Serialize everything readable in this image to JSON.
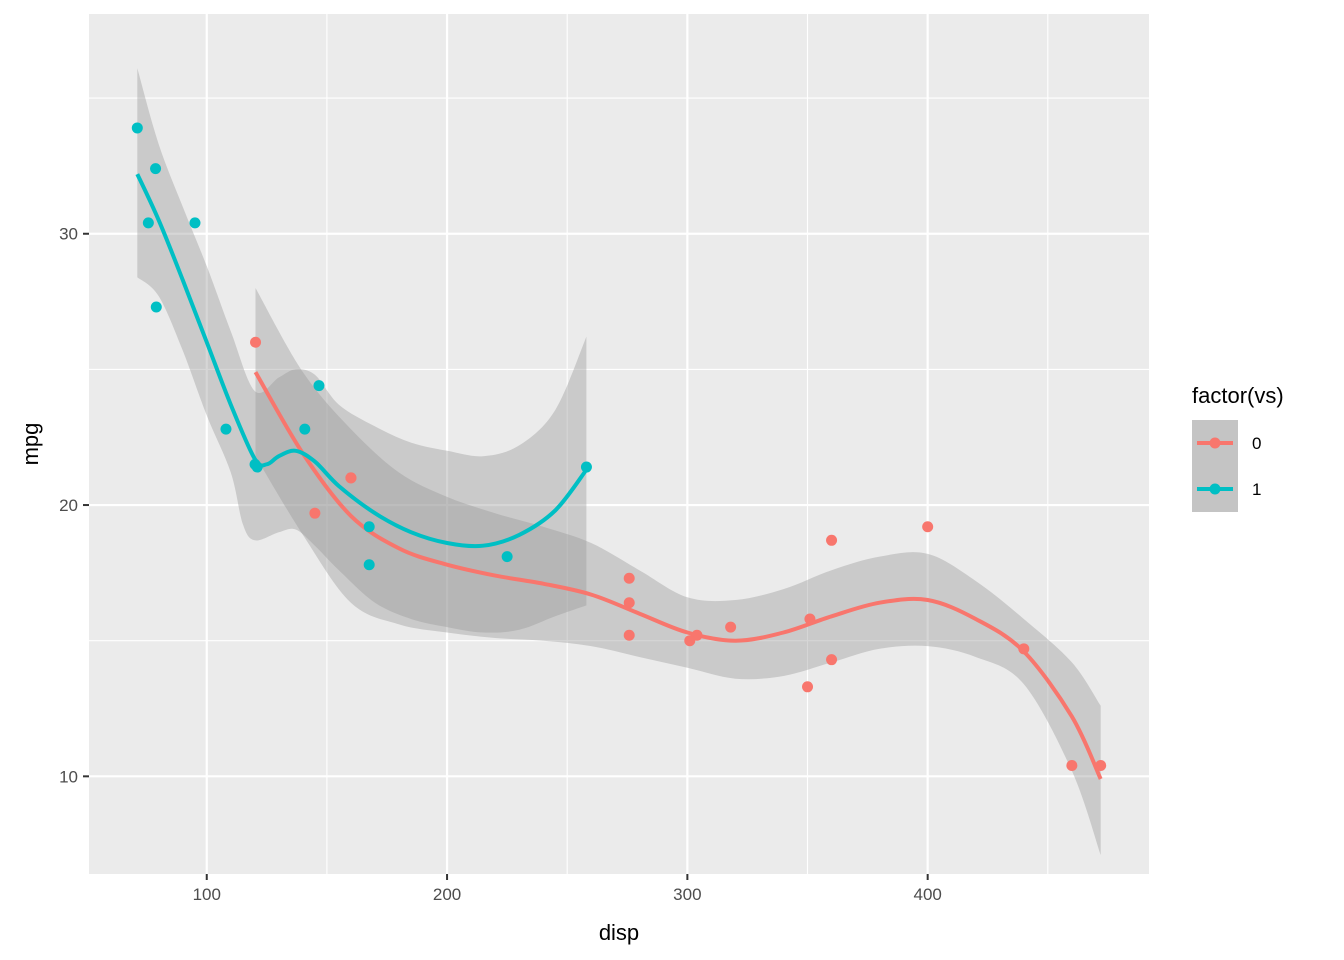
{
  "chart_data": {
    "type": "scatter",
    "xlabel": "disp",
    "ylabel": "mpg",
    "xlim": [
      51.0,
      492.1
    ],
    "ylim": [
      6.4,
      38.1
    ],
    "x_ticks": [
      100,
      200,
      300,
      400
    ],
    "y_ticks": [
      10,
      20,
      30
    ],
    "grid": true,
    "legend": {
      "title": "factor(vs)",
      "position": "right"
    },
    "series": [
      {
        "name": "0",
        "color": "#F8766D",
        "points": [
          [
            160,
            21.0
          ],
          [
            160,
            21.0
          ],
          [
            360,
            18.7
          ],
          [
            360,
            14.3
          ],
          [
            275.8,
            16.4
          ],
          [
            275.8,
            17.3
          ],
          [
            275.8,
            15.2
          ],
          [
            472,
            10.4
          ],
          [
            460,
            10.4
          ],
          [
            440,
            14.7
          ],
          [
            318,
            15.5
          ],
          [
            304,
            15.2
          ],
          [
            350,
            13.3
          ],
          [
            400,
            19.2
          ],
          [
            120.3,
            26.0
          ],
          [
            351,
            15.8
          ],
          [
            145,
            19.7
          ],
          [
            301,
            15.0
          ]
        ],
        "smooth": [
          [
            120.3,
            24.9
          ],
          [
            140,
            21.9
          ],
          [
            160,
            19.6
          ],
          [
            180,
            18.4
          ],
          [
            200,
            17.8
          ],
          [
            220,
            17.4
          ],
          [
            240,
            17.1
          ],
          [
            260,
            16.7
          ],
          [
            280,
            16.0
          ],
          [
            300,
            15.3
          ],
          [
            320,
            15.0
          ],
          [
            340,
            15.3
          ],
          [
            360,
            15.9
          ],
          [
            380,
            16.4
          ],
          [
            400,
            16.5
          ],
          [
            420,
            15.8
          ],
          [
            440,
            14.6
          ],
          [
            460,
            12.2
          ],
          [
            472,
            9.9
          ]
        ],
        "band_upper": [
          [
            120.3,
            28.0
          ],
          [
            140,
            24.9
          ],
          [
            160,
            22.8
          ],
          [
            180,
            21.2
          ],
          [
            200,
            20.3
          ],
          [
            220,
            19.7
          ],
          [
            240,
            19.2
          ],
          [
            260,
            18.6
          ],
          [
            280,
            17.6
          ],
          [
            300,
            16.6
          ],
          [
            320,
            16.5
          ],
          [
            340,
            16.9
          ],
          [
            360,
            17.6
          ],
          [
            380,
            18.1
          ],
          [
            400,
            18.2
          ],
          [
            420,
            17.2
          ],
          [
            440,
            15.8
          ],
          [
            460,
            14.2
          ],
          [
            472,
            12.6
          ]
        ],
        "band_lower": [
          [
            120.3,
            21.8
          ],
          [
            140,
            18.9
          ],
          [
            160,
            16.4
          ],
          [
            180,
            15.6
          ],
          [
            200,
            15.3
          ],
          [
            220,
            15.1
          ],
          [
            240,
            15.0
          ],
          [
            260,
            14.8
          ],
          [
            280,
            14.4
          ],
          [
            300,
            14.0
          ],
          [
            320,
            13.6
          ],
          [
            340,
            13.7
          ],
          [
            360,
            14.2
          ],
          [
            380,
            14.7
          ],
          [
            400,
            14.8
          ],
          [
            420,
            14.4
          ],
          [
            440,
            13.4
          ],
          [
            460,
            10.2
          ],
          [
            472,
            7.1
          ]
        ]
      },
      {
        "name": "1",
        "color": "#00BFC4",
        "points": [
          [
            108,
            22.8
          ],
          [
            258,
            21.4
          ],
          [
            225,
            18.1
          ],
          [
            146.7,
            24.4
          ],
          [
            140.8,
            22.8
          ],
          [
            167.6,
            19.2
          ],
          [
            167.6,
            17.8
          ],
          [
            78.7,
            32.4
          ],
          [
            75.7,
            30.4
          ],
          [
            71.1,
            33.9
          ],
          [
            120.1,
            21.5
          ],
          [
            79,
            27.3
          ],
          [
            95.1,
            30.4
          ],
          [
            121,
            21.4
          ]
        ],
        "smooth": [
          [
            71.1,
            32.2
          ],
          [
            80,
            30.5
          ],
          [
            90,
            28.3
          ],
          [
            100,
            26.0
          ],
          [
            110,
            23.7
          ],
          [
            120,
            21.7
          ],
          [
            125,
            21.5
          ],
          [
            130,
            21.8
          ],
          [
            137,
            22.0
          ],
          [
            145,
            21.6
          ],
          [
            155,
            20.7
          ],
          [
            170,
            19.7
          ],
          [
            185,
            19.0
          ],
          [
            200,
            18.6
          ],
          [
            215,
            18.5
          ],
          [
            230,
            18.9
          ],
          [
            245,
            19.8
          ],
          [
            258,
            21.3
          ]
        ],
        "band_upper": [
          [
            71.1,
            36.1
          ],
          [
            80,
            33.3
          ],
          [
            90,
            31.0
          ],
          [
            100,
            28.8
          ],
          [
            110,
            26.4
          ],
          [
            120,
            24.2
          ],
          [
            130,
            24.7
          ],
          [
            137,
            25.0
          ],
          [
            145,
            24.8
          ],
          [
            155,
            23.7
          ],
          [
            170,
            22.9
          ],
          [
            185,
            22.3
          ],
          [
            200,
            22.0
          ],
          [
            215,
            21.8
          ],
          [
            230,
            22.2
          ],
          [
            245,
            23.5
          ],
          [
            258,
            26.2
          ]
        ],
        "band_lower": [
          [
            71.1,
            28.4
          ],
          [
            80,
            27.7
          ],
          [
            90,
            25.7
          ],
          [
            100,
            23.3
          ],
          [
            110,
            21.2
          ],
          [
            115,
            19.3
          ],
          [
            120,
            18.7
          ],
          [
            130,
            19.0
          ],
          [
            137,
            19.1
          ],
          [
            145,
            18.5
          ],
          [
            155,
            17.6
          ],
          [
            170,
            16.4
          ],
          [
            185,
            15.8
          ],
          [
            200,
            15.5
          ],
          [
            215,
            15.3
          ],
          [
            230,
            15.4
          ],
          [
            245,
            15.9
          ],
          [
            258,
            16.3
          ]
        ]
      }
    ]
  }
}
